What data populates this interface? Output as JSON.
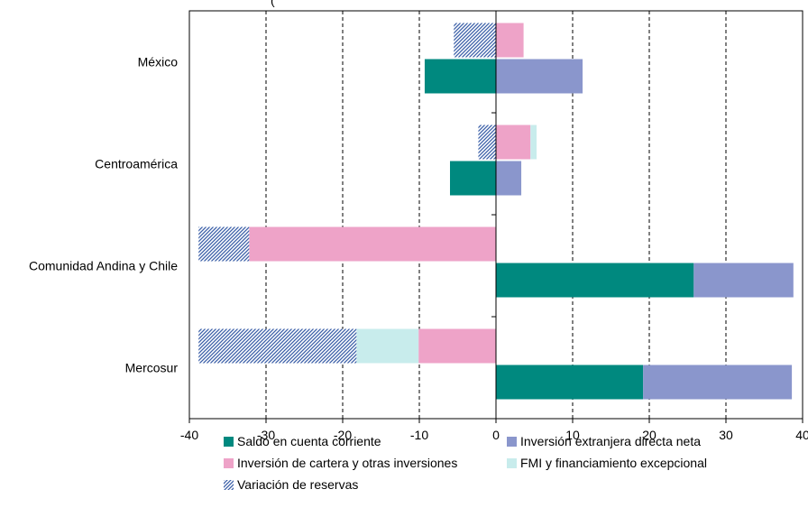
{
  "chart_data": {
    "type": "bar",
    "orientation": "horizontal",
    "stacked": true,
    "title": "",
    "xlabel": "",
    "ylabel": "",
    "xlim": [
      -40,
      40
    ],
    "xticks": [
      -40,
      -30,
      -20,
      -10,
      0,
      10,
      20,
      30,
      40
    ],
    "categories": [
      "México",
      "Centroamérica",
      "Comunidad Andina y Chile",
      "Mercosur"
    ],
    "series": [
      {
        "name": "Saldo en cuenta corriente",
        "color": "#00897f",
        "pattern": "solid",
        "row": "lower",
        "values": [
          -9.3,
          -6.0,
          25.8,
          19.2
        ]
      },
      {
        "name": "Inversión extranjera directa neta",
        "color": "#8a96cc",
        "pattern": "solid",
        "row": "lower",
        "values": [
          11.3,
          3.3,
          13.0,
          19.4
        ]
      },
      {
        "name": "Inversión de cartera y otras inversiones",
        "color": "#eea3c8",
        "pattern": "solid",
        "row": "upper",
        "values": [
          3.6,
          4.5,
          -32.2,
          -10.1
        ]
      },
      {
        "name": "FMI y financiamiento excepcional",
        "color": "#c8ecec",
        "pattern": "solid",
        "row": "upper",
        "values": [
          0,
          0.8,
          0,
          -8.1
        ]
      },
      {
        "name": "Variación de reservas",
        "color": "#3b5fa8",
        "pattern": "hatched",
        "row": "upper",
        "values": [
          -5.5,
          -2.3,
          -6.6,
          -20.6
        ]
      }
    ],
    "grid": {
      "vertical": true,
      "style": "dashed"
    },
    "legend": {
      "position": "bottom",
      "rows": [
        [
          "Saldo en cuenta corriente",
          "Inversión extranjera directa neta"
        ],
        [
          "Inversión de cartera y otras inversiones",
          "FMI y financiamiento excepcional"
        ],
        [
          "Variación de reservas"
        ]
      ]
    },
    "partial_header": "("
  }
}
